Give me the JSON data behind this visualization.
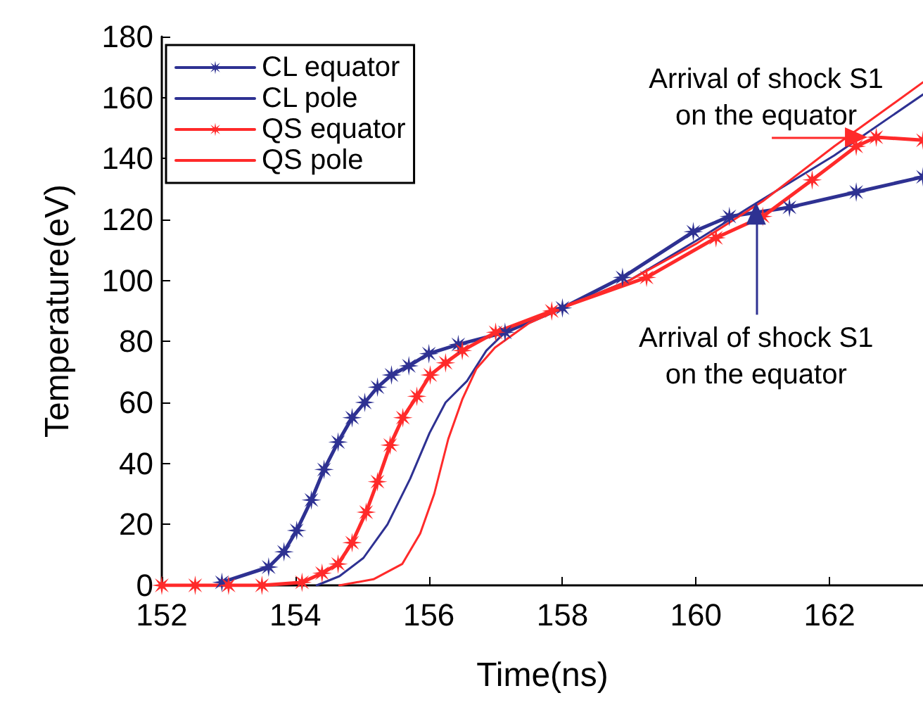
{
  "chart_data": {
    "type": "line",
    "xlabel": "Time(ns)",
    "ylabel": "Temperature(eV)",
    "xlim": [
      152,
      163.4
    ],
    "xticks": [
      152,
      154,
      156,
      158,
      160,
      162
    ],
    "ylim": [
      0,
      180
    ],
    "yticks": [
      0,
      20,
      40,
      60,
      80,
      100,
      120,
      140,
      160,
      180
    ],
    "grid": false,
    "legend": "top left",
    "series": [
      {
        "name": "CL equator",
        "color": "#2e3192",
        "marker": "star",
        "x": [
          152.9,
          153.6,
          153.83,
          154.02,
          154.24,
          154.43,
          154.64,
          154.85,
          155.04,
          155.23,
          155.44,
          155.7,
          156.0,
          156.44,
          157.14,
          158.0,
          158.9,
          159.96,
          160.5,
          161.4,
          162.4,
          163.4
        ],
        "values": [
          1,
          6,
          11,
          18,
          28,
          38,
          47,
          55,
          60,
          65,
          69,
          72,
          76,
          79,
          83,
          91,
          101,
          116,
          121,
          124,
          129,
          134
        ]
      },
      {
        "name": "CL pole",
        "color": "#2e3192",
        "marker": "none",
        "x": [
          154.32,
          154.66,
          155.02,
          155.38,
          155.72,
          156.01,
          156.25,
          156.57,
          156.86,
          157.14,
          158,
          159,
          160,
          160.8,
          162.07,
          163.4
        ],
        "values": [
          0,
          3,
          9,
          20,
          35,
          50,
          60,
          67,
          77,
          83,
          91,
          100,
          113,
          124,
          141,
          161
        ]
      },
      {
        "name": "QS equator",
        "color": "#ff2a2a",
        "marker": "star",
        "x": [
          152,
          152.5,
          153,
          153.5,
          154.1,
          154.4,
          154.64,
          154.85,
          155.06,
          155.23,
          155.42,
          155.61,
          155.82,
          156.02,
          156.25,
          156.5,
          157.0,
          157.84,
          159.26,
          160.3,
          161.0,
          161.74,
          162.4,
          162.7,
          163.4
        ],
        "values": [
          0,
          0,
          0,
          0,
          1,
          4,
          7,
          14,
          24,
          34,
          46,
          55,
          62,
          69,
          73,
          77,
          83,
          90,
          101,
          114,
          121,
          133,
          144,
          147,
          146
        ]
      },
      {
        "name": "QS pole",
        "color": "#ff2a2a",
        "marker": "none",
        "x": [
          154.66,
          155.17,
          155.6,
          155.87,
          156.08,
          156.29,
          156.5,
          156.71,
          156.99,
          157.5,
          158,
          159,
          160,
          161,
          162.07,
          163.4
        ],
        "values": [
          0,
          2,
          7,
          17,
          30,
          48,
          61,
          71,
          78,
          86,
          91,
          100,
          112,
          126,
          144,
          165
        ]
      }
    ],
    "annotations": [
      {
        "text": "Arrival of shock S1\non the equator",
        "x": 162.4,
        "y": 147
      },
      {
        "text": "Arrival of shock S1\non the equator",
        "x": 160.9,
        "y": 122
      }
    ]
  }
}
